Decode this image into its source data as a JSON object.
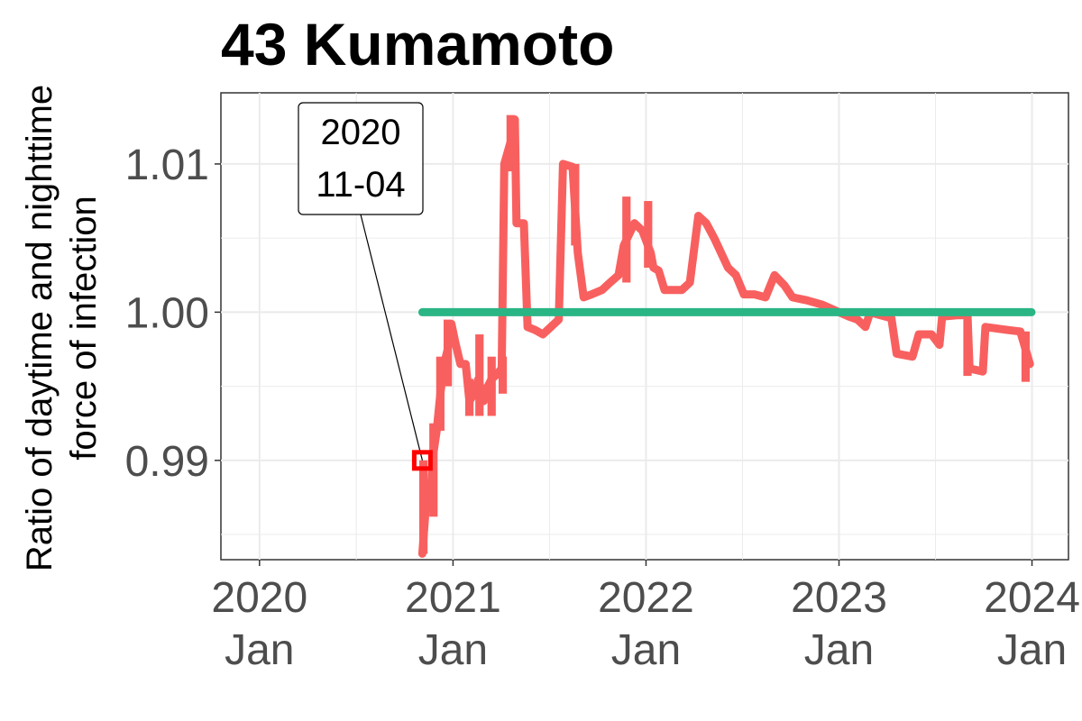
{
  "chart_data": {
    "type": "line",
    "title": "43 Kumamoto",
    "ylabel_lines": [
      "Ratio of daytime and nighttime",
      "force of infection"
    ],
    "xlabel": "",
    "ylim": [
      0.9833,
      1.0148
    ],
    "y_ticks": [
      {
        "value": 0.99,
        "label": "0.99"
      },
      {
        "value": 1.0,
        "label": "1.00"
      },
      {
        "value": 1.01,
        "label": "1.01"
      }
    ],
    "xlim": [
      "2019-10-20",
      "2024-03-10"
    ],
    "x_ticks": [
      {
        "date": "2020-01-01",
        "year": "2020",
        "month": "Jan"
      },
      {
        "date": "2021-01-01",
        "year": "2021",
        "month": "Jan"
      },
      {
        "date": "2022-01-01",
        "year": "2022",
        "month": "Jan"
      },
      {
        "date": "2023-01-01",
        "year": "2023",
        "month": "Jan"
      },
      {
        "date": "2024-01-01",
        "year": "2024",
        "month": "Jan"
      }
    ],
    "grid": true,
    "series": [
      {
        "color": "#f8605f",
        "band_half_width": 0.0002,
        "bands": [
          {
            "x": "2020-11-06",
            "y": [
              0.9837,
              0.99
            ]
          },
          {
            "x": "2020-11-25",
            "y": [
              0.9862,
              0.9925
            ]
          },
          {
            "x": "2020-12-08",
            "y": [
              0.992,
              0.997
            ]
          },
          {
            "x": "2020-12-22",
            "y": [
              0.995,
              0.9995
            ]
          },
          {
            "x": "2021-02-01",
            "y": [
              0.993,
              0.9955
            ]
          },
          {
            "x": "2021-02-20",
            "y": [
              0.993,
              0.9985
            ]
          },
          {
            "x": "2021-03-15",
            "y": [
              0.993,
              0.997
            ]
          },
          {
            "x": "2021-04-05",
            "y": [
              0.9945,
              0.997
            ]
          },
          {
            "x": "2021-04-20",
            "y": [
              1.0095,
              1.0133
            ]
          },
          {
            "x": "2021-08-20",
            "y": [
              1.0045,
              1.01
            ]
          },
          {
            "x": "2021-11-25",
            "y": [
              1.002,
              1.0078
            ]
          },
          {
            "x": "2022-01-05",
            "y": [
              1.003,
              1.0075
            ]
          },
          {
            "x": "2023-09-01",
            "y": [
              0.9957,
              0.9995
            ]
          },
          {
            "x": "2023-12-20",
            "y": [
              0.9953,
              0.9987
            ]
          }
        ],
        "points": [
          [
            "2020-11-04",
            0.9837
          ],
          [
            "2020-11-10",
            0.9866
          ],
          [
            "2020-11-20",
            0.988
          ],
          [
            "2020-11-25",
            0.9905
          ],
          [
            "2020-12-01",
            0.992
          ],
          [
            "2020-12-08",
            0.9945
          ],
          [
            "2020-12-15",
            0.9965
          ],
          [
            "2020-12-22",
            0.9975
          ],
          [
            "2020-12-29",
            0.9992
          ],
          [
            "2021-01-05",
            0.998
          ],
          [
            "2021-01-15",
            0.9965
          ],
          [
            "2021-01-25",
            0.9965
          ],
          [
            "2021-02-01",
            0.994
          ],
          [
            "2021-02-10",
            0.9945
          ],
          [
            "2021-02-18",
            0.9955
          ],
          [
            "2021-02-28",
            0.994
          ],
          [
            "2021-03-08",
            0.995
          ],
          [
            "2021-03-15",
            0.9955
          ],
          [
            "2021-03-25",
            0.9958
          ],
          [
            "2021-04-03",
            0.9962
          ],
          [
            "2021-04-08",
            1.01
          ],
          [
            "2021-04-20",
            1.0115
          ],
          [
            "2021-04-28",
            1.013
          ],
          [
            "2021-05-01",
            1.006
          ],
          [
            "2021-05-15",
            1.006
          ],
          [
            "2021-05-22",
            0.999
          ],
          [
            "2021-06-05",
            0.9988
          ],
          [
            "2021-06-20",
            0.9985
          ],
          [
            "2021-07-05",
            0.999
          ],
          [
            "2021-07-20",
            0.9995
          ],
          [
            "2021-07-28",
            1.01
          ],
          [
            "2021-08-15",
            1.0098
          ],
          [
            "2021-08-25",
            1.004
          ],
          [
            "2021-09-05",
            1.001
          ],
          [
            "2021-09-20",
            1.0012
          ],
          [
            "2021-10-10",
            1.0015
          ],
          [
            "2021-10-25",
            1.002
          ],
          [
            "2021-11-10",
            1.0025
          ],
          [
            "2021-11-20",
            1.0045
          ],
          [
            "2021-12-10",
            1.006
          ],
          [
            "2021-12-25",
            1.0055
          ],
          [
            "2022-01-10",
            1.004
          ],
          [
            "2022-01-15",
            1.003
          ],
          [
            "2022-01-25",
            1.0028
          ],
          [
            "2022-02-05",
            1.0015
          ],
          [
            "2022-03-10",
            1.0015
          ],
          [
            "2022-03-25",
            1.002
          ],
          [
            "2022-04-10",
            1.0065
          ],
          [
            "2022-04-25",
            1.006
          ],
          [
            "2022-05-10",
            1.005
          ],
          [
            "2022-06-05",
            1.003
          ],
          [
            "2022-06-20",
            1.0025
          ],
          [
            "2022-07-05",
            1.0012
          ],
          [
            "2022-07-25",
            1.0012
          ],
          [
            "2022-08-15",
            1.001
          ],
          [
            "2022-09-01",
            1.0025
          ],
          [
            "2022-09-20",
            1.0018
          ],
          [
            "2022-10-05",
            1.001
          ],
          [
            "2022-11-01",
            1.0008
          ],
          [
            "2022-12-01",
            1.0005
          ],
          [
            "2023-01-01",
            1.0
          ],
          [
            "2023-01-20",
            0.9997
          ],
          [
            "2023-02-05",
            0.9995
          ],
          [
            "2023-02-20",
            0.999
          ],
          [
            "2023-03-01",
            1.0
          ],
          [
            "2023-03-20",
            0.9998
          ],
          [
            "2023-04-10",
            0.9996
          ],
          [
            "2023-04-20",
            0.9972
          ],
          [
            "2023-05-20",
            0.997
          ],
          [
            "2023-06-01",
            0.9985
          ],
          [
            "2023-06-25",
            0.9985
          ],
          [
            "2023-07-10",
            0.9978
          ],
          [
            "2023-07-15",
            0.9997
          ],
          [
            "2023-08-15",
            0.9998
          ],
          [
            "2023-09-01",
            0.9998
          ],
          [
            "2023-09-05",
            0.9962
          ],
          [
            "2023-09-30",
            0.996
          ],
          [
            "2023-10-05",
            0.999
          ],
          [
            "2023-11-15",
            0.9988
          ],
          [
            "2023-12-10",
            0.9987
          ],
          [
            "2023-12-28",
            0.9965
          ]
        ]
      },
      {
        "color": "#2ab585",
        "points": [
          [
            "2020-11-04",
            1.0
          ],
          [
            "2023-12-31",
            1.0
          ]
        ]
      }
    ],
    "annotation": {
      "date": "2020-11-04",
      "value": 0.99,
      "lines": [
        "2020",
        "11-04"
      ],
      "marker_color": "#ff0000"
    }
  }
}
